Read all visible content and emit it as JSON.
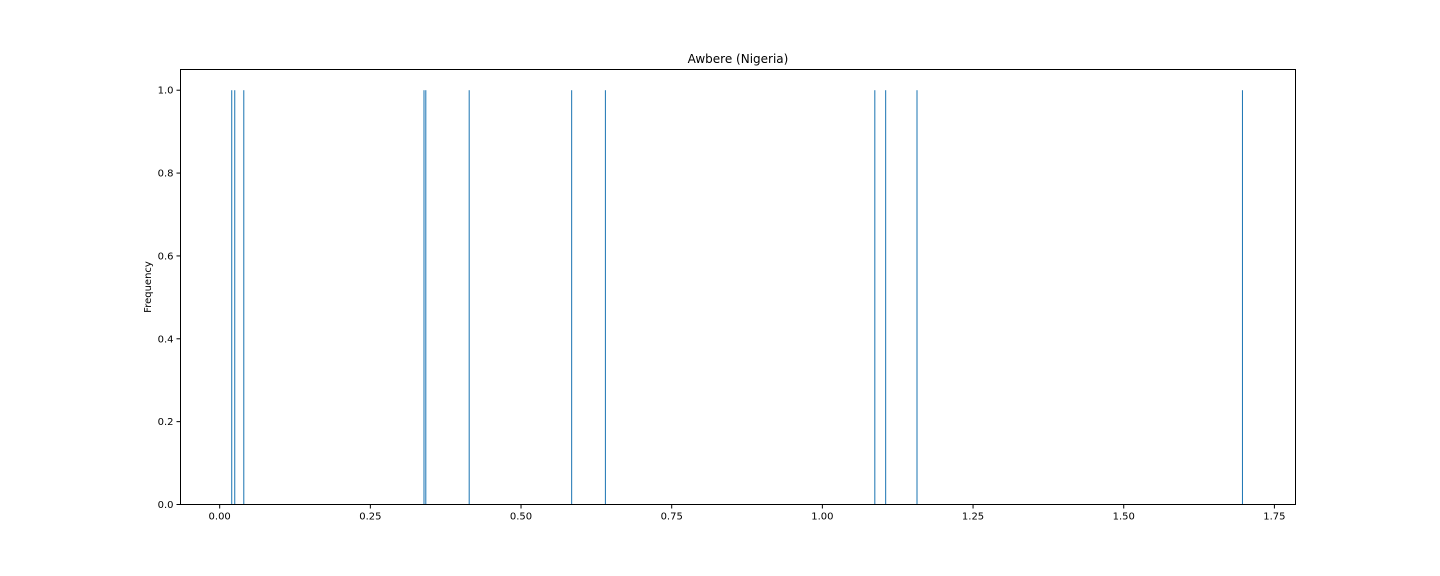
{
  "chart_data": {
    "type": "bar",
    "title": "Awbere (Nigeria)",
    "xlabel": "",
    "ylabel": "Frequency",
    "xlim": [
      -0.065,
      1.785
    ],
    "ylim": [
      0,
      1.05
    ],
    "grid": false,
    "series_color": "#1f77b4",
    "x": [
      0.02,
      0.025,
      0.04,
      0.339,
      0.342,
      0.414,
      0.584,
      0.64,
      1.087,
      1.105,
      1.157,
      1.697
    ],
    "values": [
      1,
      1,
      1,
      1,
      1,
      1,
      1,
      1,
      1,
      1,
      1,
      1
    ],
    "bin_width": 0.0017,
    "xticks": [
      0.0,
      0.25,
      0.5,
      0.75,
      1.0,
      1.25,
      1.5,
      1.75
    ],
    "xtick_labels": [
      "0.00",
      "0.25",
      "0.50",
      "0.75",
      "1.00",
      "1.25",
      "1.50",
      "1.75"
    ],
    "yticks": [
      0.0,
      0.2,
      0.4,
      0.6,
      0.8,
      1.0
    ],
    "ytick_labels": [
      "0.0",
      "0.2",
      "0.4",
      "0.6",
      "0.8",
      "1.0"
    ]
  }
}
